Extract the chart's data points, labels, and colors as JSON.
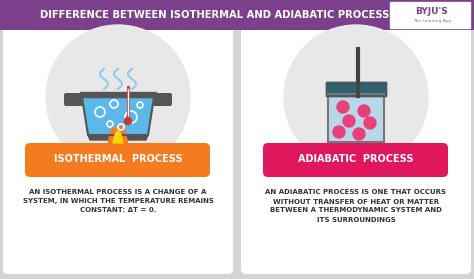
{
  "title": "DIFFERENCE BETWEEN ISOTHERMAL AND ADIABATIC PROCESS",
  "title_bg": "#7B3F8C",
  "title_color": "#FFFFFF",
  "bg_color": "#D4D4D4",
  "panel_color": "#FFFFFF",
  "left_label": "ISOTHERMAL  PROCESS",
  "right_label": "ADIABATIC  PROCESS",
  "left_label_bg": "#F47B20",
  "right_label_bg": "#E0175C",
  "left_label_color": "#FFFFFF",
  "right_label_color": "#FFFFFF",
  "left_text": "AN ISOTHERMAL PROCESS IS A CHANGE OF A\nSYSTEM, IN WHICH THE TEMPERATURE REMAINS\nCONSTANT: ΔT = 0.",
  "right_text": "AN ADIABATIC PROCESS IS ONE THAT OCCURS\nWITHOUT TRANSFER OF HEAT OR MATTER\nBETWEEN A THERMODYNAMIC SYSTEM AND\nITS SURROUNDINGS",
  "text_color": "#333333",
  "circle_color": "#E8E8E8",
  "pot_water": "#5BB8E8",
  "pot_body": "#555555",
  "flame_orange": "#F47B20",
  "flame_yellow": "#FFD700",
  "steam_color": "#90CCEE",
  "beaker_water": "#B8D8EA",
  "beaker_top": "#2F6070",
  "pink_dot": "#E8417A",
  "stirrer_color": "#444444",
  "byju_purple": "#7B3F8C"
}
